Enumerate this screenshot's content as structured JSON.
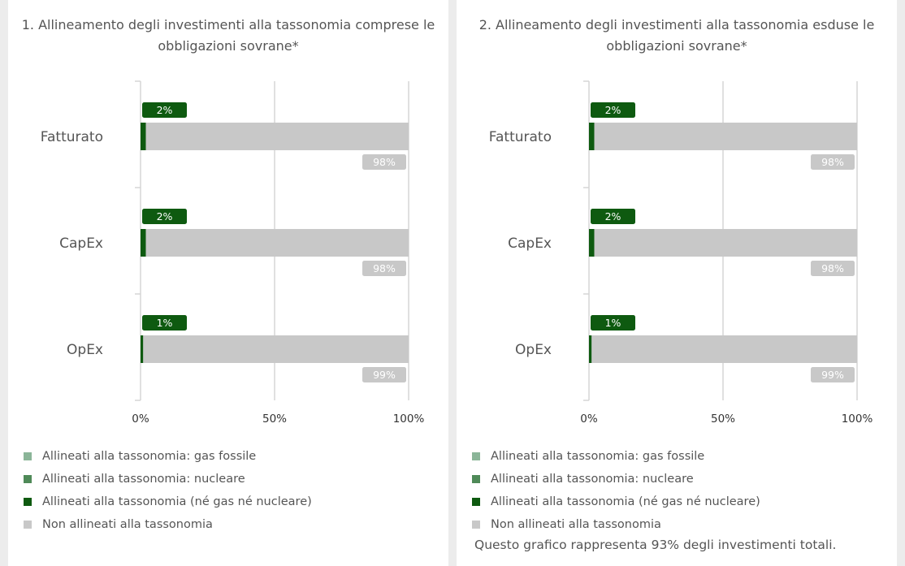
{
  "legend": [
    {
      "label": "Allineati alla tassonomia: gas fossile",
      "color": "#8bb598"
    },
    {
      "label": "Allineati alla tassonomia: nucleare",
      "color": "#4f8a58"
    },
    {
      "label": "Allineati alla tassonomia (né gas né nucleare)",
      "color": "#0e5a10"
    },
    {
      "label": "Non allineati alla tassonomia",
      "color": "#c8c8c8"
    }
  ],
  "colors": {
    "fossil_gas": "#8bb598",
    "nuclear": "#4f8a58",
    "aligned": "#0e5a10",
    "not_aligned": "#c8c8c8",
    "gridline": "#d6d6d6"
  },
  "panels": [
    {
      "title": "1. Allineamento degli investimenti alla tassonomia comprese le obbligazioni sovrane*",
      "note": ""
    },
    {
      "title": "2. Allineamento degli investimenti alla tassonomia esduse le obbligazioni sovrane*",
      "note": "Questo grafico rappresenta 93% degli investimenti totali."
    }
  ],
  "chart_data": [
    {
      "type": "bar",
      "orientation": "horizontal",
      "stacked": true,
      "title": "1. Allineamento degli investimenti alla tassonomia comprese le obbligazioni sovrane*",
      "categories": [
        "Fatturato",
        "CapEx",
        "OpEx"
      ],
      "xlim": [
        0,
        100
      ],
      "x_ticks": [
        "0%",
        "50%",
        "100%"
      ],
      "series": [
        {
          "name": "Allineati alla tassonomia: gas fossile",
          "values": [
            0,
            0,
            0
          ],
          "labels": [
            "",
            "",
            ""
          ]
        },
        {
          "name": "Allineati alla tassonomia: nucleare",
          "values": [
            0,
            0,
            0
          ],
          "labels": [
            "",
            "",
            ""
          ]
        },
        {
          "name": "Allineati alla tassonomia (né gas né nucleare)",
          "values": [
            2,
            2,
            1
          ],
          "labels": [
            "2%",
            "2%",
            "1%"
          ]
        },
        {
          "name": "Non allineati alla tassonomia",
          "values": [
            98,
            98,
            99
          ],
          "labels": [
            "98%",
            "98%",
            "99%"
          ]
        }
      ],
      "grid": true,
      "legend": "bottom"
    },
    {
      "type": "bar",
      "orientation": "horizontal",
      "stacked": true,
      "title": "2. Allineamento degli investimenti alla tassonomia esduse le obbligazioni sovrane*",
      "categories": [
        "Fatturato",
        "CapEx",
        "OpEx"
      ],
      "xlim": [
        0,
        100
      ],
      "x_ticks": [
        "0%",
        "50%",
        "100%"
      ],
      "series": [
        {
          "name": "Allineati alla tassonomia: gas fossile",
          "values": [
            0,
            0,
            0
          ],
          "labels": [
            "",
            "",
            ""
          ]
        },
        {
          "name": "Allineati alla tassonomia: nucleare",
          "values": [
            0,
            0,
            0
          ],
          "labels": [
            "",
            "",
            ""
          ]
        },
        {
          "name": "Allineati alla tassonomia (né gas né nucleare)",
          "values": [
            2,
            2,
            1
          ],
          "labels": [
            "2%",
            "2%",
            "1%"
          ]
        },
        {
          "name": "Non allineati alla tassonomia",
          "values": [
            98,
            98,
            99
          ],
          "labels": [
            "98%",
            "98%",
            "99%"
          ]
        }
      ],
      "grid": true,
      "legend": "bottom"
    }
  ]
}
